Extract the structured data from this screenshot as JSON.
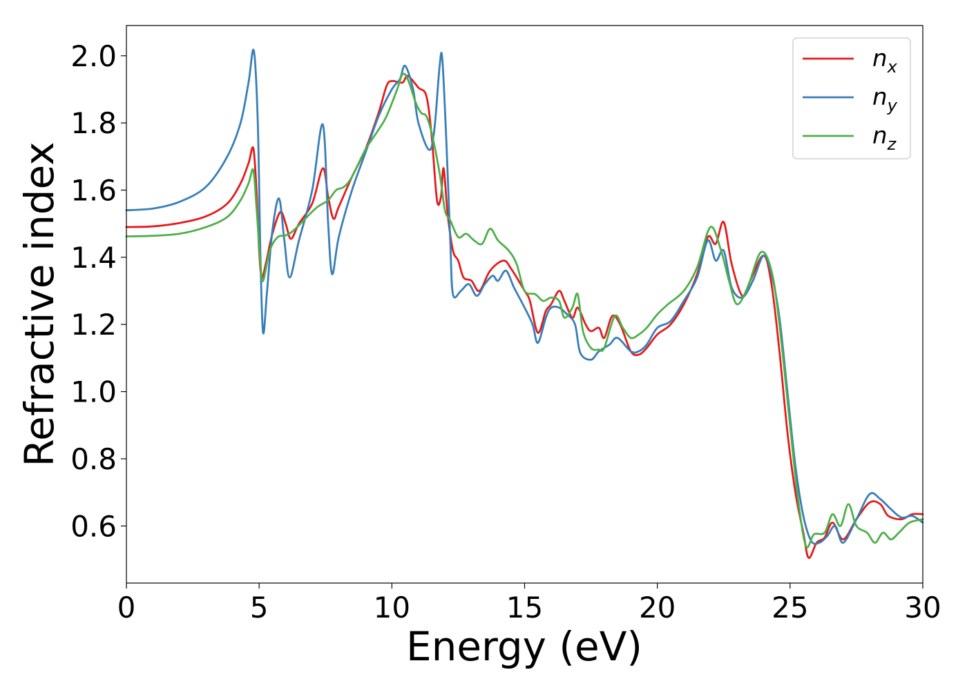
{
  "chart_data": {
    "type": "line",
    "title": "",
    "xlabel": "Energy (eV)",
    "ylabel": "Refractive index",
    "xlim": [
      0,
      30
    ],
    "ylim": [
      0.43,
      2.09
    ],
    "xticks": [
      "0",
      "5",
      "10",
      "15",
      "20",
      "25",
      "30"
    ],
    "yticks": [
      "0.6",
      "0.8",
      "1.0",
      "1.2",
      "1.4",
      "1.6",
      "1.8",
      "2.0"
    ],
    "grid": false,
    "legend_position": "top-right",
    "series": [
      {
        "name": "n_x",
        "label_base": "n",
        "label_sub": "x",
        "color": "#e41a1c",
        "points": [
          [
            0,
            1.49
          ],
          [
            1,
            1.492
          ],
          [
            2,
            1.502
          ],
          [
            3,
            1.522
          ],
          [
            3.8,
            1.56
          ],
          [
            4.3,
            1.62
          ],
          [
            4.6,
            1.68
          ],
          [
            4.78,
            1.725
          ],
          [
            4.9,
            1.6
          ],
          [
            5.0,
            1.42
          ],
          [
            5.1,
            1.34
          ],
          [
            5.25,
            1.38
          ],
          [
            5.5,
            1.47
          ],
          [
            5.8,
            1.535
          ],
          [
            6.0,
            1.5
          ],
          [
            6.2,
            1.455
          ],
          [
            6.5,
            1.5
          ],
          [
            7.0,
            1.56
          ],
          [
            7.4,
            1.665
          ],
          [
            7.6,
            1.58
          ],
          [
            7.8,
            1.515
          ],
          [
            8.0,
            1.55
          ],
          [
            8.5,
            1.64
          ],
          [
            9.0,
            1.72
          ],
          [
            9.5,
            1.83
          ],
          [
            9.8,
            1.91
          ],
          [
            10.0,
            1.925
          ],
          [
            10.4,
            1.92
          ],
          [
            10.6,
            1.94
          ],
          [
            11.0,
            1.905
          ],
          [
            11.3,
            1.88
          ],
          [
            11.5,
            1.76
          ],
          [
            11.7,
            1.57
          ],
          [
            11.85,
            1.58
          ],
          [
            11.95,
            1.665
          ],
          [
            12.1,
            1.53
          ],
          [
            12.3,
            1.42
          ],
          [
            12.5,
            1.39
          ],
          [
            12.7,
            1.34
          ],
          [
            13.0,
            1.33
          ],
          [
            13.3,
            1.3
          ],
          [
            13.7,
            1.36
          ],
          [
            14.2,
            1.39
          ],
          [
            14.5,
            1.365
          ],
          [
            15.0,
            1.3
          ],
          [
            15.2,
            1.27
          ],
          [
            15.5,
            1.175
          ],
          [
            15.8,
            1.24
          ],
          [
            16.0,
            1.26
          ],
          [
            16.3,
            1.3
          ],
          [
            16.5,
            1.27
          ],
          [
            16.8,
            1.22
          ],
          [
            17.0,
            1.25
          ],
          [
            17.3,
            1.2
          ],
          [
            17.5,
            1.18
          ],
          [
            17.8,
            1.19
          ],
          [
            18.0,
            1.16
          ],
          [
            18.3,
            1.225
          ],
          [
            18.6,
            1.2
          ],
          [
            19.0,
            1.12
          ],
          [
            19.3,
            1.11
          ],
          [
            19.6,
            1.13
          ],
          [
            20.0,
            1.17
          ],
          [
            20.5,
            1.2
          ],
          [
            21.0,
            1.26
          ],
          [
            21.5,
            1.35
          ],
          [
            21.9,
            1.46
          ],
          [
            22.2,
            1.44
          ],
          [
            22.5,
            1.505
          ],
          [
            22.8,
            1.38
          ],
          [
            23.2,
            1.285
          ],
          [
            23.5,
            1.33
          ],
          [
            24.0,
            1.405
          ],
          [
            24.3,
            1.32
          ],
          [
            24.6,
            1.12
          ],
          [
            24.9,
            0.88
          ],
          [
            25.2,
            0.7
          ],
          [
            25.5,
            0.58
          ],
          [
            25.7,
            0.505
          ],
          [
            26.0,
            0.55
          ],
          [
            26.3,
            0.565
          ],
          [
            26.6,
            0.61
          ],
          [
            27.0,
            0.56
          ],
          [
            27.5,
            0.62
          ],
          [
            28.0,
            0.67
          ],
          [
            28.4,
            0.665
          ],
          [
            28.7,
            0.63
          ],
          [
            29.2,
            0.62
          ],
          [
            29.6,
            0.635
          ],
          [
            30.0,
            0.635
          ]
        ]
      },
      {
        "name": "n_y",
        "label_base": "n",
        "label_sub": "y",
        "color": "#377eb8",
        "points": [
          [
            0,
            1.54
          ],
          [
            1,
            1.545
          ],
          [
            2,
            1.565
          ],
          [
            3,
            1.61
          ],
          [
            3.8,
            1.7
          ],
          [
            4.3,
            1.8
          ],
          [
            4.6,
            1.92
          ],
          [
            4.8,
            2.015
          ],
          [
            4.95,
            1.8
          ],
          [
            5.05,
            1.4
          ],
          [
            5.15,
            1.175
          ],
          [
            5.3,
            1.3
          ],
          [
            5.5,
            1.48
          ],
          [
            5.75,
            1.575
          ],
          [
            5.95,
            1.45
          ],
          [
            6.15,
            1.34
          ],
          [
            6.5,
            1.45
          ],
          [
            7.0,
            1.6
          ],
          [
            7.4,
            1.795
          ],
          [
            7.6,
            1.5
          ],
          [
            7.75,
            1.35
          ],
          [
            8.0,
            1.46
          ],
          [
            8.5,
            1.6
          ],
          [
            9.0,
            1.71
          ],
          [
            9.5,
            1.82
          ],
          [
            10.0,
            1.9
          ],
          [
            10.3,
            1.93
          ],
          [
            10.5,
            1.97
          ],
          [
            10.8,
            1.9
          ],
          [
            11.0,
            1.8
          ],
          [
            11.4,
            1.72
          ],
          [
            11.6,
            1.78
          ],
          [
            11.8,
            1.97
          ],
          [
            11.9,
            1.99
          ],
          [
            12.05,
            1.75
          ],
          [
            12.2,
            1.45
          ],
          [
            12.3,
            1.29
          ],
          [
            12.6,
            1.3
          ],
          [
            12.9,
            1.32
          ],
          [
            13.2,
            1.285
          ],
          [
            13.5,
            1.32
          ],
          [
            13.8,
            1.345
          ],
          [
            14.0,
            1.33
          ],
          [
            14.3,
            1.36
          ],
          [
            14.6,
            1.31
          ],
          [
            15.0,
            1.25
          ],
          [
            15.3,
            1.2
          ],
          [
            15.5,
            1.145
          ],
          [
            15.8,
            1.22
          ],
          [
            16.0,
            1.25
          ],
          [
            16.3,
            1.25
          ],
          [
            16.6,
            1.23
          ],
          [
            16.9,
            1.2
          ],
          [
            17.1,
            1.115
          ],
          [
            17.5,
            1.095
          ],
          [
            17.8,
            1.12
          ],
          [
            18.2,
            1.14
          ],
          [
            18.5,
            1.16
          ],
          [
            19.0,
            1.12
          ],
          [
            19.3,
            1.12
          ],
          [
            19.6,
            1.14
          ],
          [
            20.0,
            1.19
          ],
          [
            20.5,
            1.21
          ],
          [
            21.0,
            1.27
          ],
          [
            21.5,
            1.34
          ],
          [
            21.9,
            1.45
          ],
          [
            22.2,
            1.39
          ],
          [
            22.5,
            1.42
          ],
          [
            22.8,
            1.31
          ],
          [
            23.2,
            1.28
          ],
          [
            23.6,
            1.33
          ],
          [
            24.0,
            1.405
          ],
          [
            24.3,
            1.35
          ],
          [
            24.6,
            1.22
          ],
          [
            24.9,
            1.0
          ],
          [
            25.2,
            0.78
          ],
          [
            25.5,
            0.63
          ],
          [
            25.8,
            0.555
          ],
          [
            26.1,
            0.55
          ],
          [
            26.4,
            0.57
          ],
          [
            26.7,
            0.6
          ],
          [
            27.0,
            0.55
          ],
          [
            27.5,
            0.62
          ],
          [
            28.0,
            0.695
          ],
          [
            28.4,
            0.68
          ],
          [
            28.8,
            0.65
          ],
          [
            29.2,
            0.625
          ],
          [
            29.6,
            0.63
          ],
          [
            30.0,
            0.61
          ]
        ]
      },
      {
        "name": "n_z",
        "label_base": "n",
        "label_sub": "z",
        "color": "#4daf4a",
        "points": [
          [
            0,
            1.462
          ],
          [
            1,
            1.464
          ],
          [
            2,
            1.47
          ],
          [
            3,
            1.49
          ],
          [
            3.8,
            1.52
          ],
          [
            4.3,
            1.57
          ],
          [
            4.6,
            1.62
          ],
          [
            4.78,
            1.66
          ],
          [
            4.9,
            1.55
          ],
          [
            5.05,
            1.38
          ],
          [
            5.15,
            1.33
          ],
          [
            5.4,
            1.42
          ],
          [
            5.7,
            1.46
          ],
          [
            6.0,
            1.465
          ],
          [
            6.3,
            1.48
          ],
          [
            6.8,
            1.52
          ],
          [
            7.2,
            1.55
          ],
          [
            7.6,
            1.57
          ],
          [
            7.9,
            1.6
          ],
          [
            8.2,
            1.61
          ],
          [
            8.5,
            1.64
          ],
          [
            9.0,
            1.72
          ],
          [
            9.5,
            1.78
          ],
          [
            9.8,
            1.82
          ],
          [
            10.2,
            1.9
          ],
          [
            10.4,
            1.945
          ],
          [
            10.6,
            1.93
          ],
          [
            10.9,
            1.86
          ],
          [
            11.1,
            1.83
          ],
          [
            11.3,
            1.82
          ],
          [
            11.5,
            1.77
          ],
          [
            11.8,
            1.65
          ],
          [
            12.0,
            1.54
          ],
          [
            12.2,
            1.51
          ],
          [
            12.5,
            1.46
          ],
          [
            12.8,
            1.47
          ],
          [
            13.1,
            1.45
          ],
          [
            13.4,
            1.44
          ],
          [
            13.7,
            1.485
          ],
          [
            14.0,
            1.45
          ],
          [
            14.4,
            1.42
          ],
          [
            14.7,
            1.38
          ],
          [
            15.0,
            1.3
          ],
          [
            15.4,
            1.29
          ],
          [
            15.7,
            1.27
          ],
          [
            16.0,
            1.28
          ],
          [
            16.3,
            1.27
          ],
          [
            16.5,
            1.22
          ],
          [
            16.8,
            1.25
          ],
          [
            17.0,
            1.29
          ],
          [
            17.2,
            1.18
          ],
          [
            17.5,
            1.13
          ],
          [
            17.8,
            1.125
          ],
          [
            18.0,
            1.13
          ],
          [
            18.4,
            1.225
          ],
          [
            18.7,
            1.19
          ],
          [
            19.0,
            1.16
          ],
          [
            19.3,
            1.17
          ],
          [
            19.6,
            1.19
          ],
          [
            20.0,
            1.23
          ],
          [
            20.4,
            1.26
          ],
          [
            21.0,
            1.3
          ],
          [
            21.5,
            1.37
          ],
          [
            22.0,
            1.49
          ],
          [
            22.4,
            1.42
          ],
          [
            22.7,
            1.33
          ],
          [
            23.0,
            1.26
          ],
          [
            23.4,
            1.31
          ],
          [
            23.9,
            1.415
          ],
          [
            24.3,
            1.36
          ],
          [
            24.6,
            1.2
          ],
          [
            25.0,
            0.9
          ],
          [
            25.3,
            0.68
          ],
          [
            25.6,
            0.54
          ],
          [
            25.9,
            0.575
          ],
          [
            26.3,
            0.58
          ],
          [
            26.6,
            0.635
          ],
          [
            26.9,
            0.6
          ],
          [
            27.2,
            0.665
          ],
          [
            27.5,
            0.6
          ],
          [
            27.9,
            0.58
          ],
          [
            28.2,
            0.55
          ],
          [
            28.5,
            0.58
          ],
          [
            28.8,
            0.56
          ],
          [
            29.1,
            0.58
          ],
          [
            29.5,
            0.61
          ],
          [
            30.0,
            0.62
          ]
        ]
      }
    ]
  }
}
